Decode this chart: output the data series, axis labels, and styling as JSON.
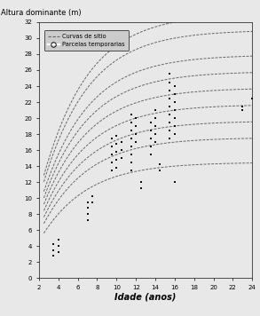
{
  "title_y": "Altura dominante (m)",
  "title_x": "Idade (anos)",
  "xlim": [
    2,
    24
  ],
  "ylim": [
    0,
    32
  ],
  "xticks": [
    2,
    4,
    6,
    8,
    10,
    12,
    14,
    16,
    18,
    20,
    22,
    24
  ],
  "yticks": [
    0,
    2,
    4,
    6,
    8,
    10,
    12,
    14,
    16,
    18,
    20,
    22,
    24,
    26,
    28,
    30,
    32
  ],
  "site_indices": [
    14,
    17,
    19,
    21,
    23,
    25,
    27,
    30,
    32
  ],
  "curve_color": "#666666",
  "scatter_color": "#111111",
  "legend_line_label": "Curvas de sitio",
  "legend_scatter_label": "Parcelas temporarias",
  "background_color": "#e8e8e8",
  "legend_bg": "#cccccc",
  "b_param": 0.22,
  "c_param": 1.1,
  "t_ref": 16,
  "t_start": 2.5,
  "scatter_data": [
    [
      3.5,
      4.2
    ],
    [
      3.5,
      3.5
    ],
    [
      3.5,
      2.8
    ],
    [
      4.0,
      4.8
    ],
    [
      4.0,
      4.0
    ],
    [
      4.0,
      3.2
    ],
    [
      7.0,
      9.5
    ],
    [
      7.0,
      8.8
    ],
    [
      7.0,
      8.0
    ],
    [
      7.0,
      7.2
    ],
    [
      7.5,
      10.2
    ],
    [
      7.5,
      9.5
    ],
    [
      9.5,
      17.5
    ],
    [
      9.5,
      16.5
    ],
    [
      9.5,
      15.5
    ],
    [
      9.5,
      14.5
    ],
    [
      9.5,
      13.5
    ],
    [
      10.0,
      17.8
    ],
    [
      10.0,
      16.8
    ],
    [
      10.0,
      15.8
    ],
    [
      10.0,
      14.8
    ],
    [
      10.0,
      13.8
    ],
    [
      10.5,
      17.0
    ],
    [
      10.5,
      16.0
    ],
    [
      10.5,
      15.0
    ],
    [
      11.5,
      20.5
    ],
    [
      11.5,
      19.5
    ],
    [
      11.5,
      18.5
    ],
    [
      11.5,
      17.5
    ],
    [
      11.5,
      16.5
    ],
    [
      11.5,
      15.5
    ],
    [
      11.5,
      14.5
    ],
    [
      11.5,
      13.5
    ],
    [
      12.0,
      20.0
    ],
    [
      12.0,
      19.0
    ],
    [
      12.0,
      18.0
    ],
    [
      12.0,
      17.0
    ],
    [
      12.5,
      12.0
    ],
    [
      12.5,
      11.2
    ],
    [
      13.5,
      19.5
    ],
    [
      13.5,
      18.5
    ],
    [
      13.5,
      17.5
    ],
    [
      13.5,
      16.5
    ],
    [
      13.5,
      15.5
    ],
    [
      14.0,
      21.0
    ],
    [
      14.0,
      20.0
    ],
    [
      14.0,
      19.0
    ],
    [
      14.0,
      18.0
    ],
    [
      14.0,
      17.0
    ],
    [
      14.5,
      14.2
    ],
    [
      14.5,
      13.5
    ],
    [
      15.5,
      25.5
    ],
    [
      15.5,
      24.5
    ],
    [
      15.5,
      23.5
    ],
    [
      15.5,
      22.5
    ],
    [
      15.5,
      21.5
    ],
    [
      15.5,
      20.5
    ],
    [
      15.5,
      19.5
    ],
    [
      15.5,
      18.5
    ],
    [
      15.5,
      17.5
    ],
    [
      16.0,
      24.0
    ],
    [
      16.0,
      23.0
    ],
    [
      16.0,
      22.0
    ],
    [
      16.0,
      21.0
    ],
    [
      16.0,
      20.0
    ],
    [
      16.0,
      19.0
    ],
    [
      16.0,
      18.0
    ],
    [
      16.0,
      12.0
    ],
    [
      23.0,
      21.5
    ],
    [
      23.0,
      21.0
    ],
    [
      24.0,
      22.5
    ]
  ]
}
